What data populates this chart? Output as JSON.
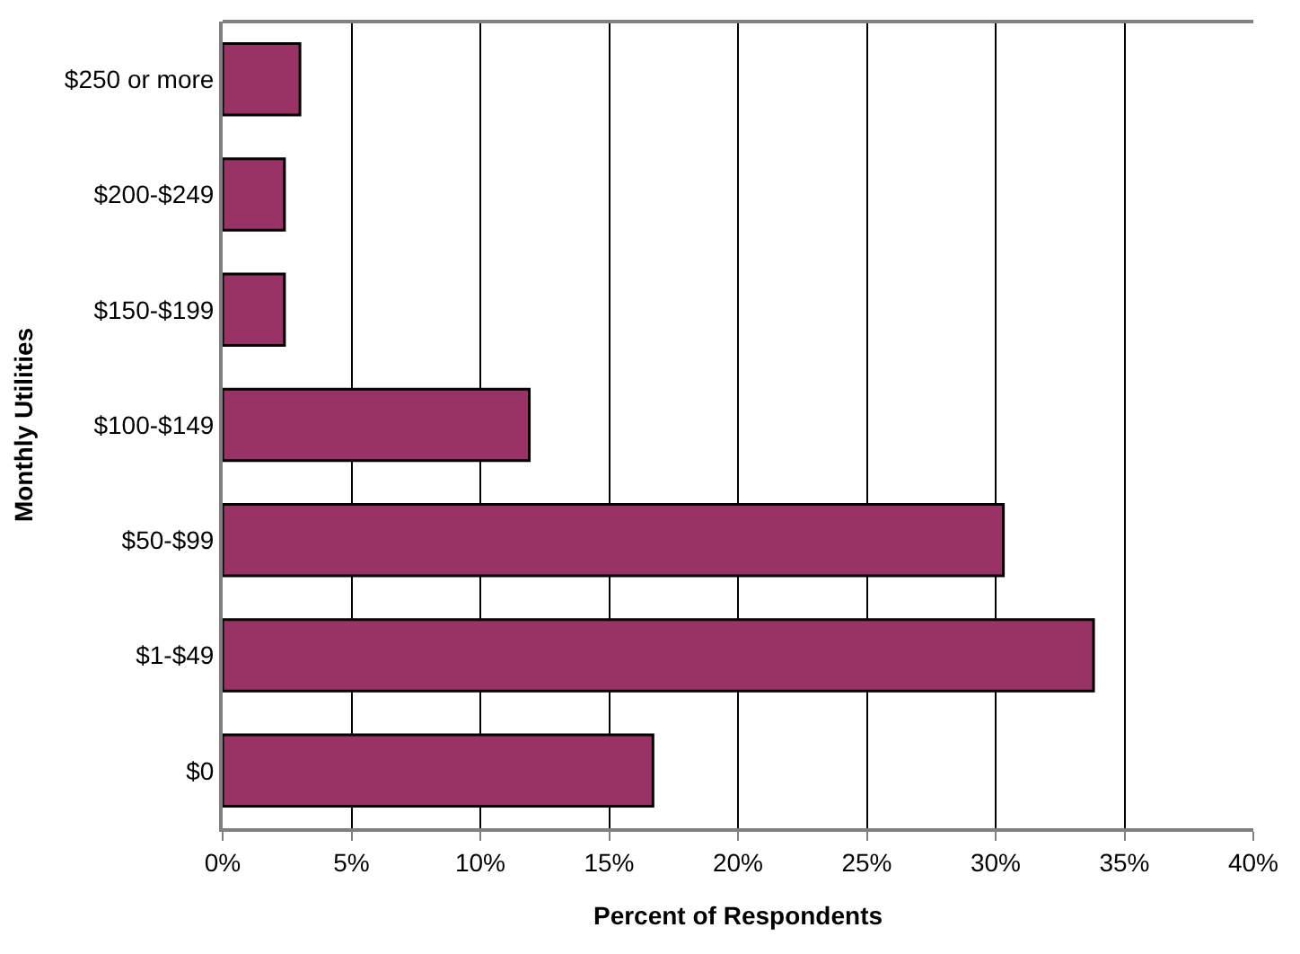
{
  "chart_data": {
    "type": "bar",
    "orientation": "horizontal",
    "xlabel": "Percent of Respondents",
    "ylabel": "Monthly Utilities",
    "categories": [
      "$250 or more",
      "$200-$249",
      "$150-$199",
      "$100-$149",
      "$50-$99",
      "$1-$49",
      "$0"
    ],
    "values": [
      3.0,
      2.4,
      2.4,
      11.9,
      30.3,
      33.8,
      16.7
    ],
    "color": "#993366",
    "xlim": [
      0,
      40
    ],
    "xticks": [
      {
        "value": 0,
        "label": "0%"
      },
      {
        "value": 5,
        "label": "5%"
      },
      {
        "value": 10,
        "label": "10%"
      },
      {
        "value": 15,
        "label": "15%"
      },
      {
        "value": 20,
        "label": "20%"
      },
      {
        "value": 25,
        "label": "25%"
      },
      {
        "value": 30,
        "label": "30%"
      },
      {
        "value": 35,
        "label": "35%"
      },
      {
        "value": 40,
        "label": "40%"
      }
    ],
    "grid": "x"
  }
}
